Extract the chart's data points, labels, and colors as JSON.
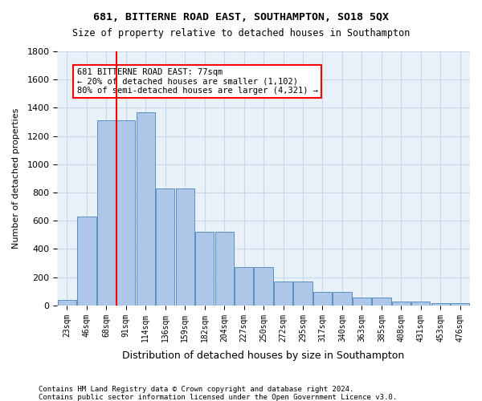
{
  "title1": "681, BITTERNE ROAD EAST, SOUTHAMPTON, SO18 5QX",
  "title2": "Size of property relative to detached houses in Southampton",
  "xlabel": "Distribution of detached houses by size in Southampton",
  "ylabel": "Number of detached properties",
  "categories": [
    "23sqm",
    "46sqm",
    "68sqm",
    "91sqm",
    "114sqm",
    "136sqm",
    "159sqm",
    "182sqm",
    "204sqm",
    "227sqm",
    "250sqm",
    "272sqm",
    "295sqm",
    "317sqm",
    "340sqm",
    "363sqm",
    "385sqm",
    "408sqm",
    "431sqm",
    "453sqm",
    "476sqm"
  ],
  "values": [
    40,
    630,
    1310,
    1310,
    1370,
    830,
    830,
    520,
    520,
    270,
    270,
    170,
    170,
    95,
    95,
    55,
    55,
    30,
    30,
    17,
    17
  ],
  "bar_color": "#aec6e8",
  "bar_edge_color": "#5a8fc0",
  "red_line_x": 2.5,
  "annotation_text": "681 BITTERNE ROAD EAST: 77sqm\n← 20% of detached houses are smaller (1,102)\n80% of semi-detached houses are larger (4,321) →",
  "annotation_box_color": "white",
  "annotation_box_edge_color": "red",
  "red_line_color": "red",
  "ylim": [
    0,
    1800
  ],
  "yticks": [
    0,
    200,
    400,
    600,
    800,
    1000,
    1200,
    1400,
    1600,
    1800
  ],
  "grid_color": "#c8d8e8",
  "bg_color": "#e8f0f8",
  "footer1": "Contains HM Land Registry data © Crown copyright and database right 2024.",
  "footer2": "Contains public sector information licensed under the Open Government Licence v3.0."
}
